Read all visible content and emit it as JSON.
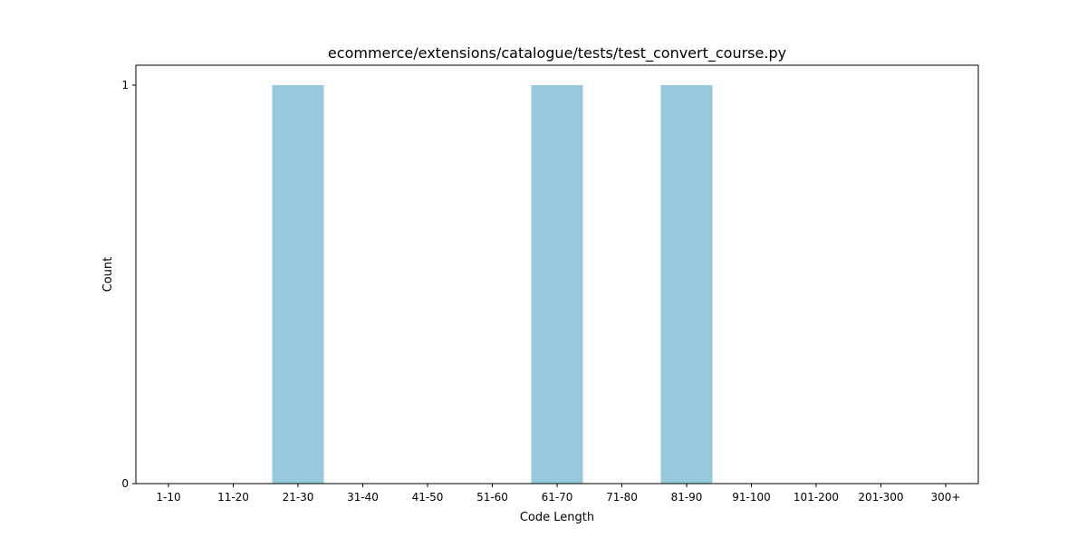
{
  "chart_data": {
    "type": "bar",
    "title": "ecommerce/extensions/catalogue/tests/test_convert_course.py",
    "xlabel": "Code Length",
    "ylabel": "Count",
    "categories": [
      "1-10",
      "11-20",
      "21-30",
      "31-40",
      "41-50",
      "51-60",
      "61-70",
      "71-80",
      "81-90",
      "91-100",
      "101-200",
      "201-300",
      "300+"
    ],
    "values": [
      0,
      0,
      1,
      0,
      0,
      0,
      1,
      0,
      1,
      0,
      0,
      0,
      0
    ],
    "ylim": [
      0,
      1
    ],
    "yticks": [
      0,
      1
    ],
    "grid": false,
    "legend": "none",
    "bar_color": "#96c9dd"
  }
}
